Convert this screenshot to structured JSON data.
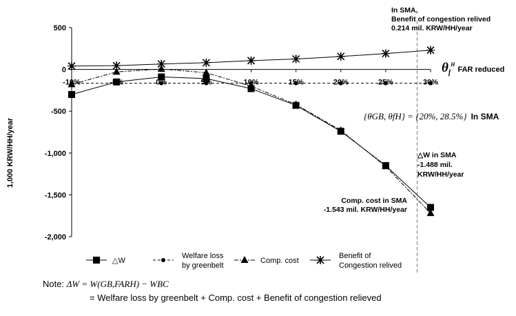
{
  "chart_data": {
    "type": "line",
    "title": "",
    "xlabel": "θ_f^H FAR reduced",
    "x_symbol": "θ",
    "x_sub": "f",
    "x_sup": "H",
    "x_suffix": "FAR reduced",
    "ylabel": "1,000 KRW/HH/year",
    "categories": [
      "-10%",
      "-5%",
      "0%",
      "5%",
      "10%",
      "15%",
      "20%",
      "25%",
      "30%"
    ],
    "x": [
      -10,
      -5,
      0,
      5,
      10,
      15,
      20,
      25,
      30
    ],
    "y_ticks": [
      "500",
      "0",
      "-500",
      "-1,000",
      "-1,500",
      "-2,000"
    ],
    "y_tick_values": [
      500,
      0,
      -500,
      -1000,
      -1500,
      -2000
    ],
    "ylim": [
      -2000,
      500
    ],
    "grid": false,
    "series": [
      {
        "name": "△W",
        "marker": "square",
        "dash": "solid",
        "values": [
          -300,
          -150,
          -90,
          -110,
          -230,
          -430,
          -740,
          -1150,
          -1650
        ]
      },
      {
        "name": "Welfare loss by greenbelt",
        "marker": "circle",
        "dash": "dashed",
        "values": [
          -165,
          -165,
          -165,
          -165,
          -165,
          -165,
          -165,
          -165,
          -165
        ]
      },
      {
        "name": "Comp. cost",
        "marker": "triangle",
        "dash": "dashdot",
        "values": [
          -180,
          -30,
          5,
          -40,
          -200,
          -420,
          -730,
          -1160,
          -1720
        ]
      },
      {
        "name": "Benefit of Congestion relived",
        "marker": "star",
        "dash": "solid",
        "values": [
          40,
          45,
          65,
          80,
          105,
          125,
          155,
          190,
          230
        ]
      }
    ],
    "vline_x": 28.5,
    "annotations": {
      "top_right": [
        "In SMA,",
        "Benefit of congestion relived",
        "0.214 mil. KRW/HH/year"
      ],
      "theta_pair_left": "{θ",
      "theta_pair_formula": "{θGB, θfH} = {20%, 28.5%}",
      "theta_pair_suffix": "In SMA",
      "delta_w": [
        "△W in SMA",
        "-1.488 mil.",
        "KRW/HH/year"
      ],
      "comp_cost": [
        "Comp. cost in SMA",
        "-1.543 mil. KRW/HH/year"
      ]
    },
    "legend_placement": "bottom"
  },
  "legend": {
    "items": [
      {
        "line1": "△W",
        "line2": ""
      },
      {
        "line1": "Welfare loss",
        "line2": "by greenbelt"
      },
      {
        "line1": "Comp. cost",
        "line2": ""
      },
      {
        "line1": "Benefit of",
        "line2": "Congestion relived"
      }
    ]
  },
  "note": {
    "prefix": "Note:",
    "equation": "ΔW = W(GB,FARH) − WBC",
    "line2": "= Welfare loss by greenbelt + Comp. cost + Benefit of congestion relieved"
  }
}
